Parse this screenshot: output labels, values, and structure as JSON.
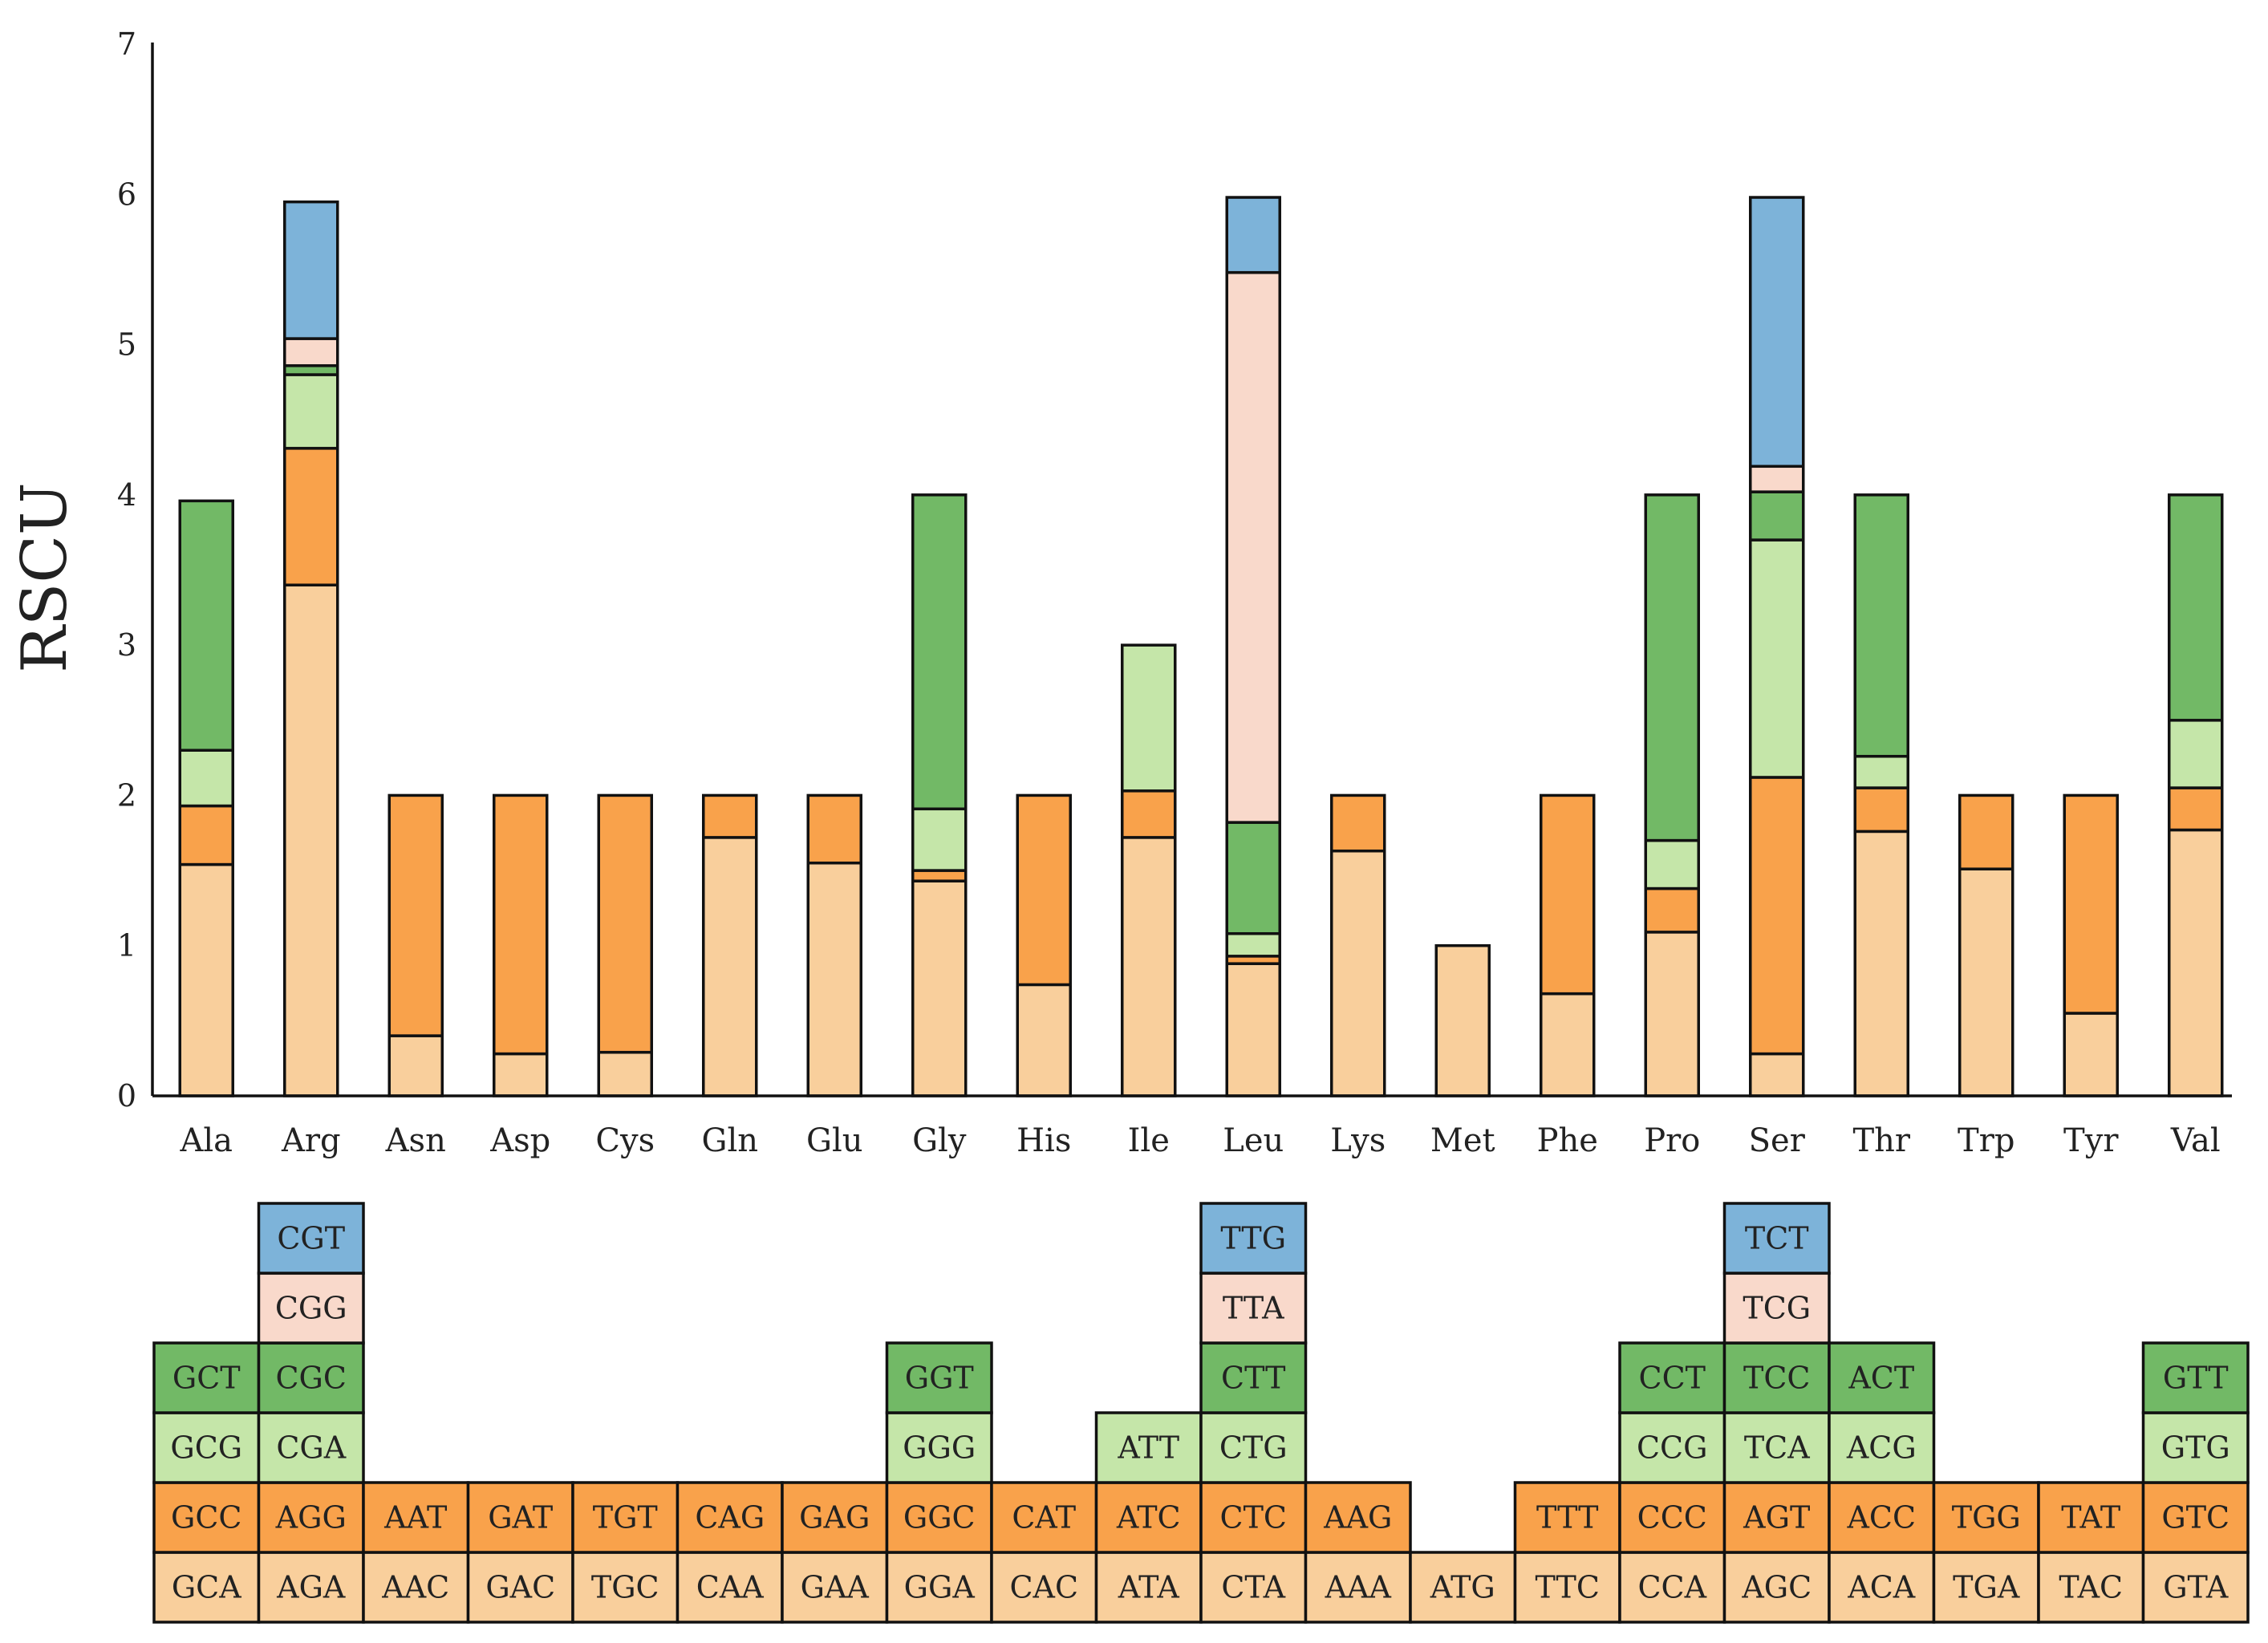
{
  "chart_data": {
    "type": "bar",
    "stacked": true,
    "title": "",
    "xlabel": "",
    "ylabel": "RSCU",
    "ylim": [
      0,
      7
    ],
    "y_ticks": [
      "0",
      "1",
      "2",
      "3",
      "4",
      "5",
      "6",
      "7"
    ],
    "colors": [
      "#F9CF9C",
      "#F9A24B",
      "#C5E6A9",
      "#72B966",
      "#F9D9CB",
      "#7DB3D9"
    ],
    "categories": [
      "Ala",
      "Arg",
      "Asn",
      "Asp",
      "Cys",
      "Gln",
      "Glu",
      "Gly",
      "His",
      "Ile",
      "Leu",
      "Lys",
      "Met",
      "Phe",
      "Pro",
      "Ser",
      "Thr",
      "Trp",
      "Tyr",
      "Val"
    ],
    "stacks": [
      {
        "amino_acid": "Ala",
        "values": [
          1.54,
          0.39,
          0.37,
          1.66
        ]
      },
      {
        "amino_acid": "Arg",
        "values": [
          3.4,
          0.91,
          0.49,
          0.06,
          0.18,
          0.91
        ]
      },
      {
        "amino_acid": "Asn",
        "values": [
          0.4,
          1.6
        ]
      },
      {
        "amino_acid": "Asp",
        "values": [
          0.28,
          1.72
        ]
      },
      {
        "amino_acid": "Cys",
        "values": [
          0.29,
          1.71
        ]
      },
      {
        "amino_acid": "Gln",
        "values": [
          1.72,
          0.28
        ]
      },
      {
        "amino_acid": "Glu",
        "values": [
          1.55,
          0.45
        ]
      },
      {
        "amino_acid": "Gly",
        "values": [
          1.43,
          0.07,
          0.41,
          2.09
        ]
      },
      {
        "amino_acid": "His",
        "values": [
          0.74,
          1.26
        ]
      },
      {
        "amino_acid": "Ile",
        "values": [
          1.72,
          0.31,
          0.97
        ]
      },
      {
        "amino_acid": "Leu",
        "values": [
          0.88,
          0.05,
          0.15,
          0.74,
          3.66,
          0.5
        ]
      },
      {
        "amino_acid": "Lys",
        "values": [
          1.63,
          0.37
        ]
      },
      {
        "amino_acid": "Met",
        "values": [
          1.0
        ]
      },
      {
        "amino_acid": "Phe",
        "values": [
          0.68,
          1.32
        ]
      },
      {
        "amino_acid": "Pro",
        "values": [
          1.09,
          0.29,
          0.32,
          2.3
        ]
      },
      {
        "amino_acid": "Ser",
        "values": [
          0.28,
          1.84,
          1.58,
          0.32,
          0.17,
          1.79
        ]
      },
      {
        "amino_acid": "Thr",
        "values": [
          1.76,
          0.29,
          0.21,
          1.74
        ]
      },
      {
        "amino_acid": "Trp",
        "values": [
          1.51,
          0.49
        ]
      },
      {
        "amino_acid": "Tyr",
        "values": [
          0.55,
          1.45
        ]
      },
      {
        "amino_acid": "Val",
        "values": [
          1.77,
          0.28,
          0.45,
          1.5
        ]
      }
    ],
    "codon_table": [
      [
        "GCA",
        "GCC",
        "GCG",
        "GCT"
      ],
      [
        "AGA",
        "AGG",
        "CGA",
        "CGC",
        "CGG",
        "CGT"
      ],
      [
        "AAC",
        "AAT"
      ],
      [
        "GAC",
        "GAT"
      ],
      [
        "TGC",
        "TGT"
      ],
      [
        "CAA",
        "CAG"
      ],
      [
        "GAA",
        "GAG"
      ],
      [
        "GGA",
        "GGC",
        "GGG",
        "GGT"
      ],
      [
        "CAC",
        "CAT"
      ],
      [
        "ATA",
        "ATC",
        "ATT"
      ],
      [
        "CTA",
        "CTC",
        "CTG",
        "CTT",
        "TTA",
        "TTG"
      ],
      [
        "AAA",
        "AAG"
      ],
      [
        "ATG"
      ],
      [
        "TTC",
        "TTT"
      ],
      [
        "CCA",
        "CCC",
        "CCG",
        "CCT"
      ],
      [
        "AGC",
        "AGT",
        "TCA",
        "TCC",
        "TCG",
        "TCT"
      ],
      [
        "ACA",
        "ACC",
        "ACG",
        "ACT"
      ],
      [
        "TGA",
        "TGG"
      ],
      [
        "TAC",
        "TAT"
      ],
      [
        "GTA",
        "GTC",
        "GTG",
        "GTT"
      ]
    ]
  }
}
